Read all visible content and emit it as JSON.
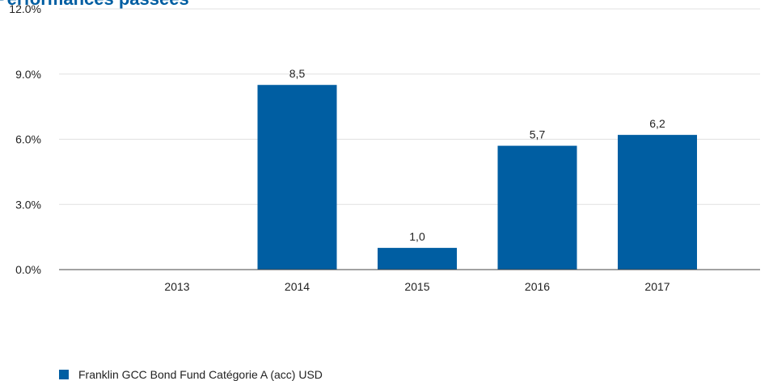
{
  "page": {
    "title": "Performances passées"
  },
  "chart_data": {
    "type": "bar",
    "categories": [
      "2013",
      "2014",
      "2015",
      "2016",
      "2017"
    ],
    "series": [
      {
        "name": "Franklin GCC Bond Fund Catégorie A (acc) USD",
        "values": [
          null,
          8.5,
          1.0,
          5.7,
          6.2
        ],
        "value_labels": [
          "",
          "8,5",
          "1,0",
          "5,7",
          "6,2"
        ]
      }
    ],
    "y_ticks": [
      "0.0%",
      "3.0%",
      "6.0%",
      "9.0%",
      "12.0%"
    ],
    "ylim": [
      0,
      12
    ],
    "grid": true,
    "legend_position": "bottom-left",
    "colors": {
      "bar": "#005ea2",
      "grid": "#e0e0e0",
      "axis": "#444444",
      "title": "#005ea2"
    }
  }
}
